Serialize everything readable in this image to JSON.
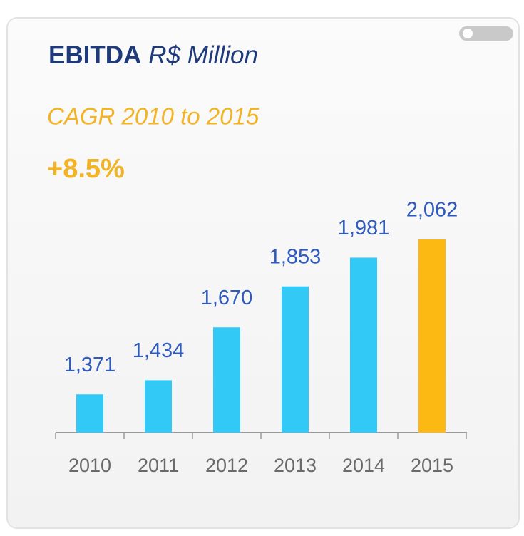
{
  "chart_data": {
    "type": "bar",
    "title": "EBITDA",
    "title_unit": "R$ Million",
    "annotations": [
      "CAGR 2010 to 2015",
      "+8.5%"
    ],
    "categories": [
      "2010",
      "2011",
      "2012",
      "2013",
      "2014",
      "2015"
    ],
    "values": [
      1371,
      1434,
      1670,
      1853,
      1981,
      2062
    ],
    "value_labels": [
      "1,371",
      "1,434",
      "1,670",
      "1,853",
      "1,981",
      "2,062"
    ],
    "colors": [
      "#33c9f7",
      "#33c9f7",
      "#33c9f7",
      "#33c9f7",
      "#33c9f7",
      "#fdb913"
    ],
    "ylim": [
      1200,
      2240
    ]
  }
}
